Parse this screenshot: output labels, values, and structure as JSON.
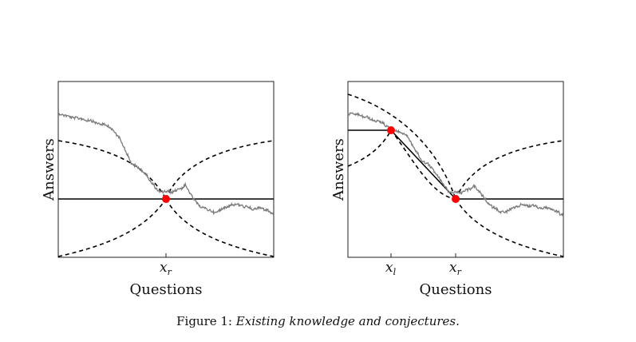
{
  "panels": [
    {
      "ylabel": "Answers",
      "xlabel": "Questions",
      "ticks": [
        {
          "main": "x",
          "sub": "r"
        }
      ]
    },
    {
      "ylabel": "Answers",
      "xlabel": "Questions",
      "ticks": [
        {
          "main": "x",
          "sub": "l"
        },
        {
          "main": "x",
          "sub": "r"
        }
      ]
    }
  ],
  "caption": {
    "label": "Figure 1:",
    "text": "Existing knowledge and conjectures."
  },
  "colors": {
    "walk": "#7a7a7a",
    "point": "#ff0000",
    "line": "#000000"
  }
}
